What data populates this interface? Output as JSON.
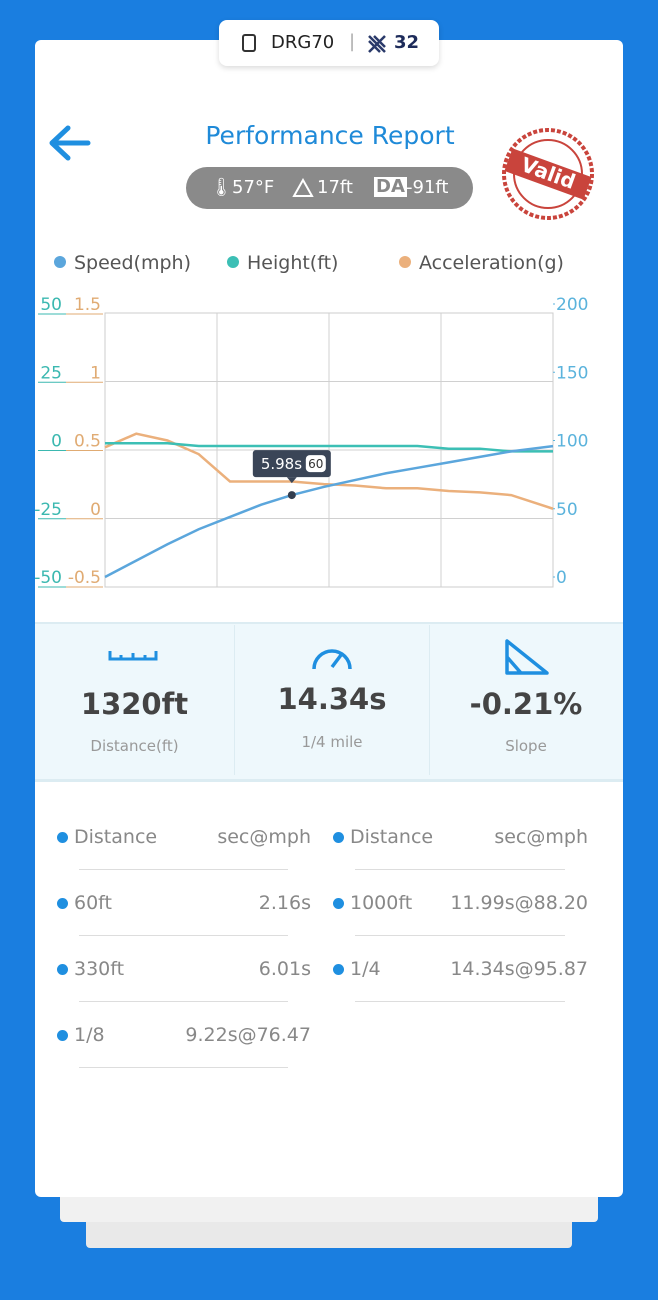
{
  "header": {
    "device": "DRG70",
    "count": 32
  },
  "title": "Performance Report",
  "conditions": {
    "temperature": "57°F",
    "elevation": "17ft",
    "da_label": "DA",
    "density_altitude": "-91ft"
  },
  "stamp": "Valid",
  "chart_data": {
    "type": "line",
    "x": [
      0,
      1,
      2,
      3,
      4,
      5,
      5.98,
      7,
      8,
      9,
      10,
      11,
      12,
      13,
      14.34
    ],
    "xlim": [
      0,
      14.34
    ],
    "series": [
      {
        "name": "Speed(mph)",
        "color": "#5ba6dc",
        "axis": "y2",
        "values": [
          0,
          12,
          24,
          35,
          44,
          53,
          60,
          66,
          71,
          76,
          80,
          84,
          88,
          92,
          95.87
        ]
      },
      {
        "name": "Height(ft)",
        "color": "#3cbfb5",
        "axis": "y",
        "values": [
          -1,
          -1,
          -1,
          -2,
          -2,
          -2,
          -2,
          -2,
          -2,
          -2,
          -2,
          -3,
          -3,
          -4,
          -4
        ]
      },
      {
        "name": "Acceleration(g)",
        "color": "#ebb07c",
        "axis": "y3",
        "values": [
          0.45,
          0.55,
          0.5,
          0.4,
          0.2,
          0.2,
          0.2,
          0.18,
          0.17,
          0.15,
          0.15,
          0.13,
          0.12,
          0.1,
          0.0
        ]
      }
    ],
    "ylim": [
      -50,
      50
    ],
    "yticks": [
      50,
      25,
      0,
      -25,
      -50
    ],
    "y3lim": [
      -0.5,
      1.5
    ],
    "y3ticks": [
      1.5,
      1,
      0.5,
      0,
      -0.5
    ],
    "y2lim": [
      0,
      200
    ],
    "y2ticks": [
      200,
      150,
      100,
      50,
      0
    ],
    "grid": true,
    "tooltip": {
      "label": "5.98s",
      "value": 60
    }
  },
  "stats": [
    {
      "value": "1320ft",
      "label": "Distance(ft)"
    },
    {
      "value": "14.34s",
      "label": "1/4 mile"
    },
    {
      "value": "-0.21%",
      "label": "Slope"
    }
  ],
  "table": {
    "headers": [
      "Distance",
      "sec@mph"
    ],
    "left": [
      [
        "60ft",
        "2.16s"
      ],
      [
        "330ft",
        "6.01s"
      ],
      [
        "1/8",
        "9.22s@76.47"
      ]
    ],
    "right": [
      [
        "1000ft",
        "11.99s@88.20"
      ],
      [
        "1/4",
        "14.34s@95.87"
      ]
    ]
  }
}
